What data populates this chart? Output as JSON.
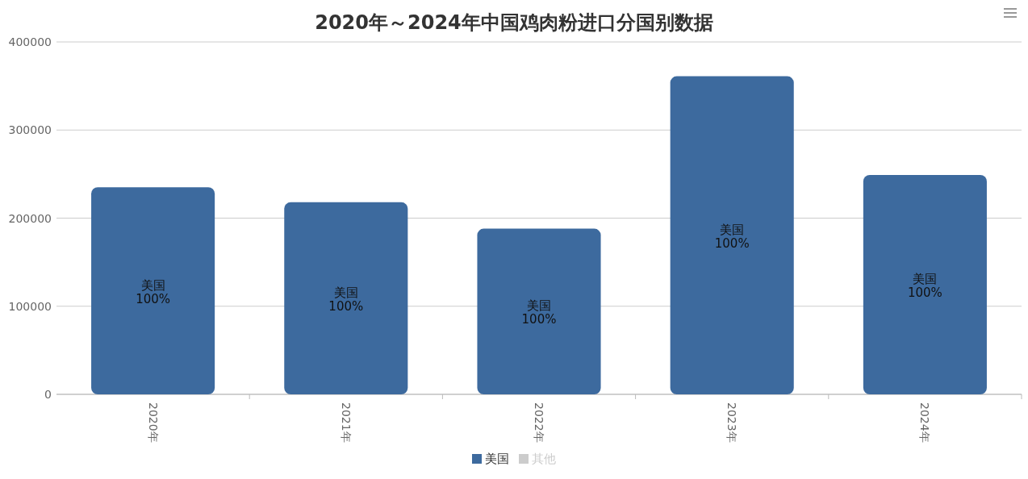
{
  "chart_data": {
    "type": "bar",
    "title": "2020年～2024年中国鸡肉粉进口分国别数据",
    "categories": [
      "2020年",
      "2021年",
      "2022年",
      "2023年",
      "2024年"
    ],
    "series": [
      {
        "name": "美国",
        "color": "#3d6a9e",
        "values": [
          235000,
          218000,
          188000,
          361000,
          249000
        ],
        "value_labels": [
          "美国\n100%",
          "美国\n100%",
          "美国\n100%",
          "美国\n100%",
          "美国\n100%"
        ]
      },
      {
        "name": "其他",
        "color": "#cccccc",
        "values": [
          null,
          null,
          null,
          null,
          null
        ]
      }
    ],
    "ylim": [
      0,
      400000
    ],
    "yticks": [
      0,
      100000,
      200000,
      300000,
      400000
    ],
    "grid": "y",
    "legend": "bottom"
  }
}
